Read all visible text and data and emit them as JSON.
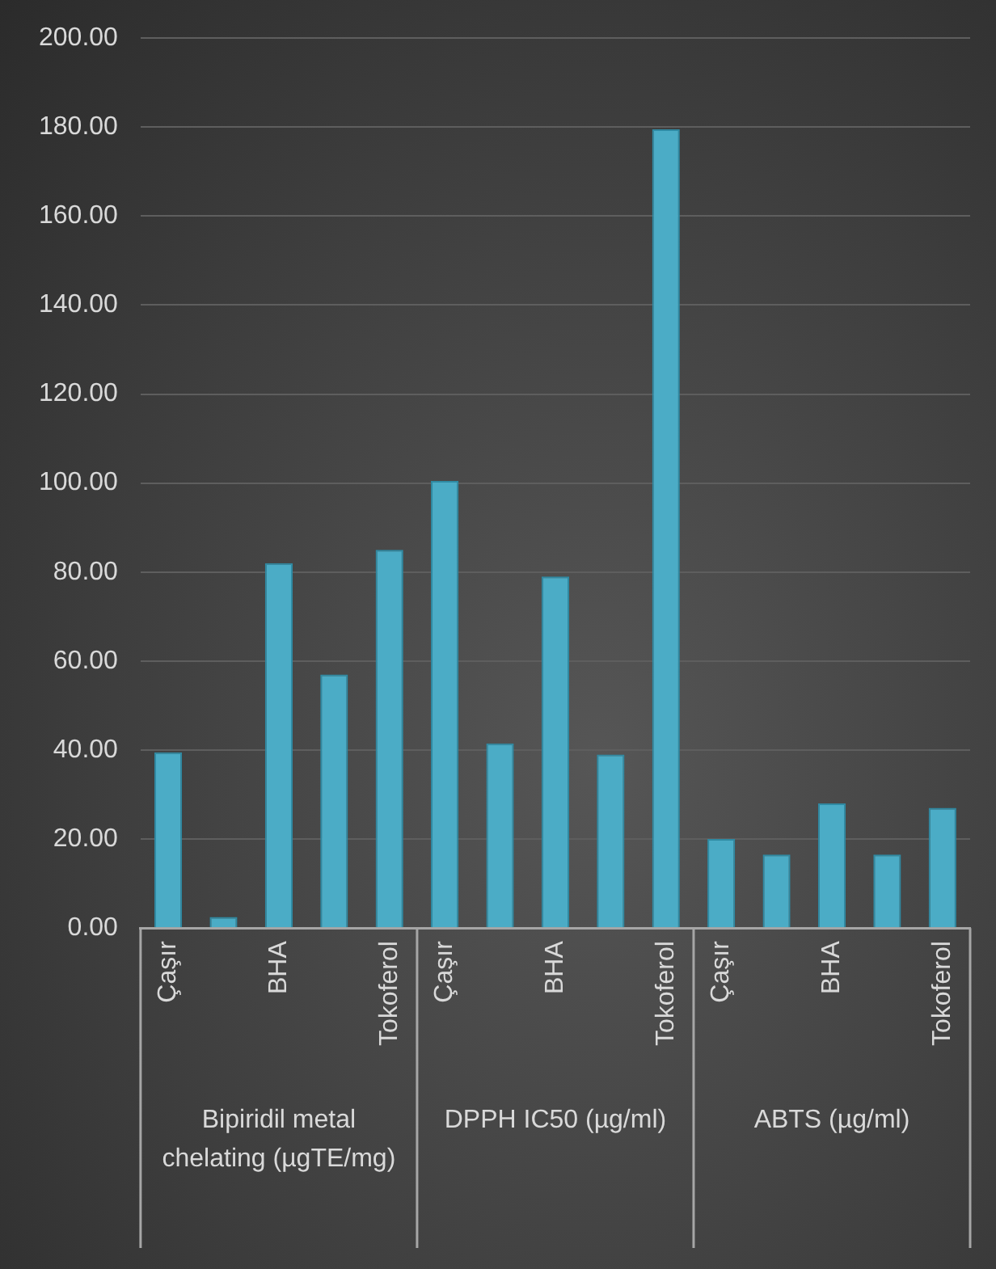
{
  "chart_data": {
    "type": "bar",
    "categories": [
      "Çaşır",
      null,
      "BHA",
      null,
      "Tokoferol",
      "Çaşır",
      null,
      "BHA",
      null,
      "Tokoferol",
      "Çaşır",
      null,
      "BHA",
      null,
      "Tokoferol"
    ],
    "values": [
      39.5,
      2.5,
      82,
      57,
      85,
      100.5,
      41.5,
      79,
      39,
      179.5,
      20,
      16.5,
      28,
      16.5,
      27
    ],
    "color": "#4bacc6",
    "ylim": [
      0,
      200
    ],
    "yticks": [
      {
        "value": 0,
        "label": "0.00"
      },
      {
        "value": 20,
        "label": "20.00"
      },
      {
        "value": 40,
        "label": "40.00"
      },
      {
        "value": 60,
        "label": "60.00"
      },
      {
        "value": 80,
        "label": "80.00"
      },
      {
        "value": 100,
        "label": "100.00"
      },
      {
        "value": 120,
        "label": "120.00"
      },
      {
        "value": 140,
        "label": "140.00"
      },
      {
        "value": 160,
        "label": "160.00"
      },
      {
        "value": 180,
        "label": "180.00"
      },
      {
        "value": 200,
        "label": "200.00"
      }
    ],
    "grid": "y",
    "annotations": [
      "Bipiridil metal chelating (µgTE/mg)",
      "DPPH IC50 (µg/ml)",
      "ABTS (µg/ml)"
    ]
  }
}
